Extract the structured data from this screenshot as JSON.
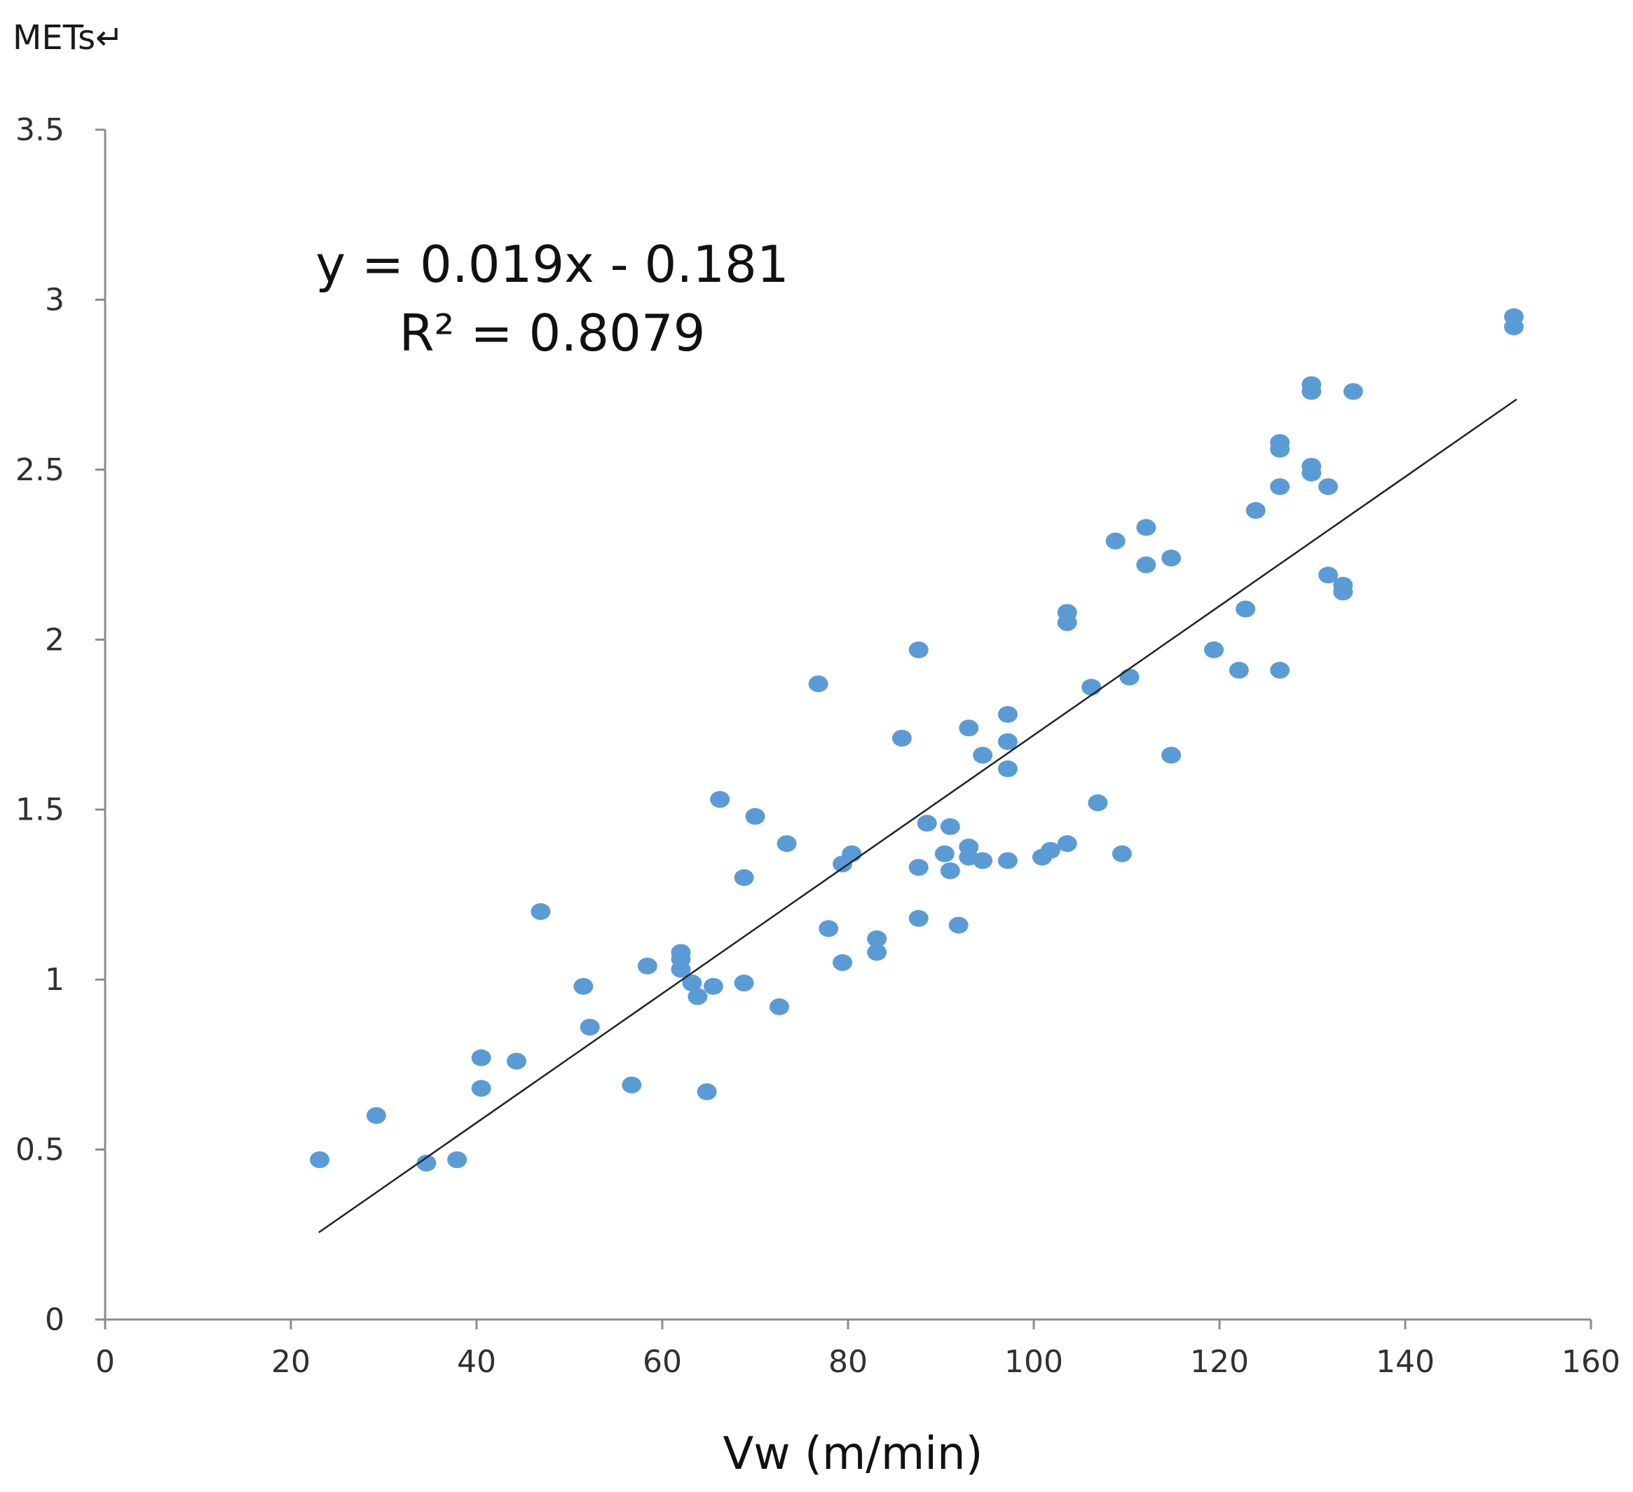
{
  "chart_data": {
    "type": "scatter",
    "title": "",
    "xlabel": "Vw (m/min)",
    "ylabel": "METs↵",
    "xlim": [
      0,
      160
    ],
    "ylim": [
      0,
      3.5
    ],
    "xticks": [
      "0",
      "20",
      "40",
      "60",
      "80",
      "100",
      "120",
      "140",
      "160"
    ],
    "yticks": [
      "0",
      "0.5",
      "1",
      "1.5",
      "2",
      "2.5",
      "3",
      "3.5"
    ],
    "grid": false,
    "legend": "none",
    "marker_color": "#5b9bd5",
    "trendline": {
      "type": "linear",
      "slope": 0.019,
      "intercept": -0.181,
      "x_range": [
        23,
        152
      ],
      "equation_text": "y = 0.019x - 0.181",
      "r2_label": "R² = 0.8079",
      "color": "#222222"
    },
    "points": [
      {
        "x": 23.1,
        "y": 0.47
      },
      {
        "x": 29.2,
        "y": 0.6
      },
      {
        "x": 34.6,
        "y": 0.46
      },
      {
        "x": 37.9,
        "y": 0.47
      },
      {
        "x": 40.5,
        "y": 0.77
      },
      {
        "x": 40.5,
        "y": 0.68
      },
      {
        "x": 44.3,
        "y": 0.76
      },
      {
        "x": 46.9,
        "y": 1.2
      },
      {
        "x": 51.5,
        "y": 0.98
      },
      {
        "x": 52.2,
        "y": 0.86
      },
      {
        "x": 56.7,
        "y": 0.69
      },
      {
        "x": 58.4,
        "y": 1.04
      },
      {
        "x": 62.0,
        "y": 1.08
      },
      {
        "x": 62.0,
        "y": 1.06
      },
      {
        "x": 62.0,
        "y": 1.03
      },
      {
        "x": 63.2,
        "y": 0.99
      },
      {
        "x": 63.8,
        "y": 0.95
      },
      {
        "x": 64.8,
        "y": 0.67
      },
      {
        "x": 65.5,
        "y": 0.98
      },
      {
        "x": 66.2,
        "y": 1.53
      },
      {
        "x": 68.8,
        "y": 1.3
      },
      {
        "x": 68.8,
        "y": 0.99
      },
      {
        "x": 70.0,
        "y": 1.48
      },
      {
        "x": 72.6,
        "y": 0.92
      },
      {
        "x": 73.4,
        "y": 1.4
      },
      {
        "x": 76.8,
        "y": 1.87
      },
      {
        "x": 77.9,
        "y": 1.15
      },
      {
        "x": 79.4,
        "y": 1.34
      },
      {
        "x": 79.4,
        "y": 1.05
      },
      {
        "x": 80.4,
        "y": 1.37
      },
      {
        "x": 83.1,
        "y": 1.12
      },
      {
        "x": 83.1,
        "y": 1.08
      },
      {
        "x": 85.8,
        "y": 1.71
      },
      {
        "x": 87.6,
        "y": 1.97
      },
      {
        "x": 87.6,
        "y": 1.33
      },
      {
        "x": 87.6,
        "y": 1.18
      },
      {
        "x": 88.5,
        "y": 1.46
      },
      {
        "x": 90.4,
        "y": 1.37
      },
      {
        "x": 91.0,
        "y": 1.45
      },
      {
        "x": 91.0,
        "y": 1.32
      },
      {
        "x": 91.9,
        "y": 1.16
      },
      {
        "x": 93.0,
        "y": 1.74
      },
      {
        "x": 93.0,
        "y": 1.39
      },
      {
        "x": 93.0,
        "y": 1.36
      },
      {
        "x": 94.5,
        "y": 1.66
      },
      {
        "x": 94.5,
        "y": 1.35
      },
      {
        "x": 97.2,
        "y": 1.78
      },
      {
        "x": 97.2,
        "y": 1.7
      },
      {
        "x": 97.2,
        "y": 1.62
      },
      {
        "x": 97.2,
        "y": 1.35
      },
      {
        "x": 100.9,
        "y": 1.36
      },
      {
        "x": 101.8,
        "y": 1.38
      },
      {
        "x": 103.6,
        "y": 2.08
      },
      {
        "x": 103.6,
        "y": 2.05
      },
      {
        "x": 103.6,
        "y": 1.4
      },
      {
        "x": 106.2,
        "y": 1.86
      },
      {
        "x": 106.9,
        "y": 1.52
      },
      {
        "x": 108.8,
        "y": 2.29
      },
      {
        "x": 109.5,
        "y": 1.37
      },
      {
        "x": 110.3,
        "y": 1.89
      },
      {
        "x": 112.1,
        "y": 2.33
      },
      {
        "x": 112.1,
        "y": 2.22
      },
      {
        "x": 114.8,
        "y": 2.24
      },
      {
        "x": 114.8,
        "y": 1.66
      },
      {
        "x": 119.4,
        "y": 1.97
      },
      {
        "x": 122.1,
        "y": 1.91
      },
      {
        "x": 122.8,
        "y": 2.09
      },
      {
        "x": 123.9,
        "y": 2.38
      },
      {
        "x": 126.5,
        "y": 2.58
      },
      {
        "x": 126.5,
        "y": 2.56
      },
      {
        "x": 126.5,
        "y": 2.45
      },
      {
        "x": 126.5,
        "y": 1.91
      },
      {
        "x": 129.9,
        "y": 2.75
      },
      {
        "x": 129.9,
        "y": 2.73
      },
      {
        "x": 129.9,
        "y": 2.51
      },
      {
        "x": 129.9,
        "y": 2.49
      },
      {
        "x": 131.7,
        "y": 2.45
      },
      {
        "x": 131.7,
        "y": 2.19
      },
      {
        "x": 133.3,
        "y": 2.16
      },
      {
        "x": 133.3,
        "y": 2.14
      },
      {
        "x": 134.4,
        "y": 2.73
      },
      {
        "x": 151.7,
        "y": 2.95
      },
      {
        "x": 151.7,
        "y": 2.92
      }
    ]
  }
}
